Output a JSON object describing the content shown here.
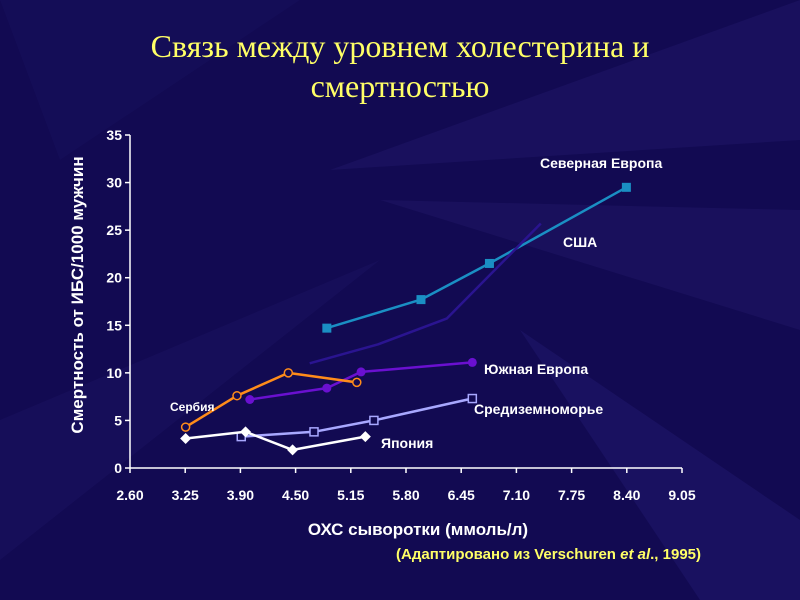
{
  "slide": {
    "title_line1": "Связь между уровнем холестерина и",
    "title_line2": "смертностью",
    "source_prefix": "(Адаптировано из Verschuren ",
    "source_italic": "et al",
    "source_suffix": "., 1995)"
  },
  "colors": {
    "background": "#120a52",
    "title": "#ffff66",
    "axis_text": "#ffffff"
  },
  "chart_data": {
    "type": "line",
    "title": "",
    "xlabel": "ОХС сыворотки (ммоль/л)",
    "ylabel": "Смертность от ИБС/1000 мужчин",
    "xticks": [
      "2.60",
      "3.25",
      "3.90",
      "4.50",
      "5.15",
      "5.80",
      "6.45",
      "7.10",
      "7.75",
      "8.40",
      "9.05"
    ],
    "xlim": [
      2.6,
      9.05
    ],
    "yticks": [
      0,
      5,
      10,
      15,
      20,
      25,
      30,
      35
    ],
    "ylim": [
      0,
      35
    ],
    "grid": false,
    "series": [
      {
        "name": "Северная Европа",
        "color": "#1a8fc4",
        "marker": "square-filled",
        "x": [
          4.9,
          6.0,
          6.8,
          8.4
        ],
        "y": [
          14.7,
          17.7,
          21.5,
          29.5
        ]
      },
      {
        "name": "США",
        "color": "#2a1490",
        "marker": "none",
        "x": [
          4.7,
          5.5,
          6.3,
          7.4
        ],
        "y": [
          11.0,
          13.0,
          15.7,
          25.7
        ]
      },
      {
        "name": "Южная Европа",
        "color": "#6a10d0",
        "marker": "circle-filled",
        "x": [
          4.0,
          4.9,
          5.3,
          6.6
        ],
        "y": [
          7.2,
          8.4,
          10.1,
          11.1
        ]
      },
      {
        "name": "Сербия",
        "color": "#ff8c1a",
        "marker": "circle-open",
        "x": [
          3.25,
          3.85,
          4.45,
          5.25
        ],
        "y": [
          4.3,
          7.6,
          10.0,
          9.0
        ]
      },
      {
        "name": "Средиземноморье",
        "color": "#a8a8ff",
        "marker": "square-open",
        "x": [
          3.9,
          4.75,
          5.45,
          6.6
        ],
        "y": [
          3.3,
          3.8,
          5.0,
          7.3
        ]
      },
      {
        "name": "Япония",
        "color": "#ffffff",
        "marker": "diamond-filled",
        "x": [
          3.25,
          3.95,
          4.5,
          5.35
        ],
        "y": [
          3.1,
          3.8,
          1.9,
          3.3
        ]
      }
    ]
  }
}
